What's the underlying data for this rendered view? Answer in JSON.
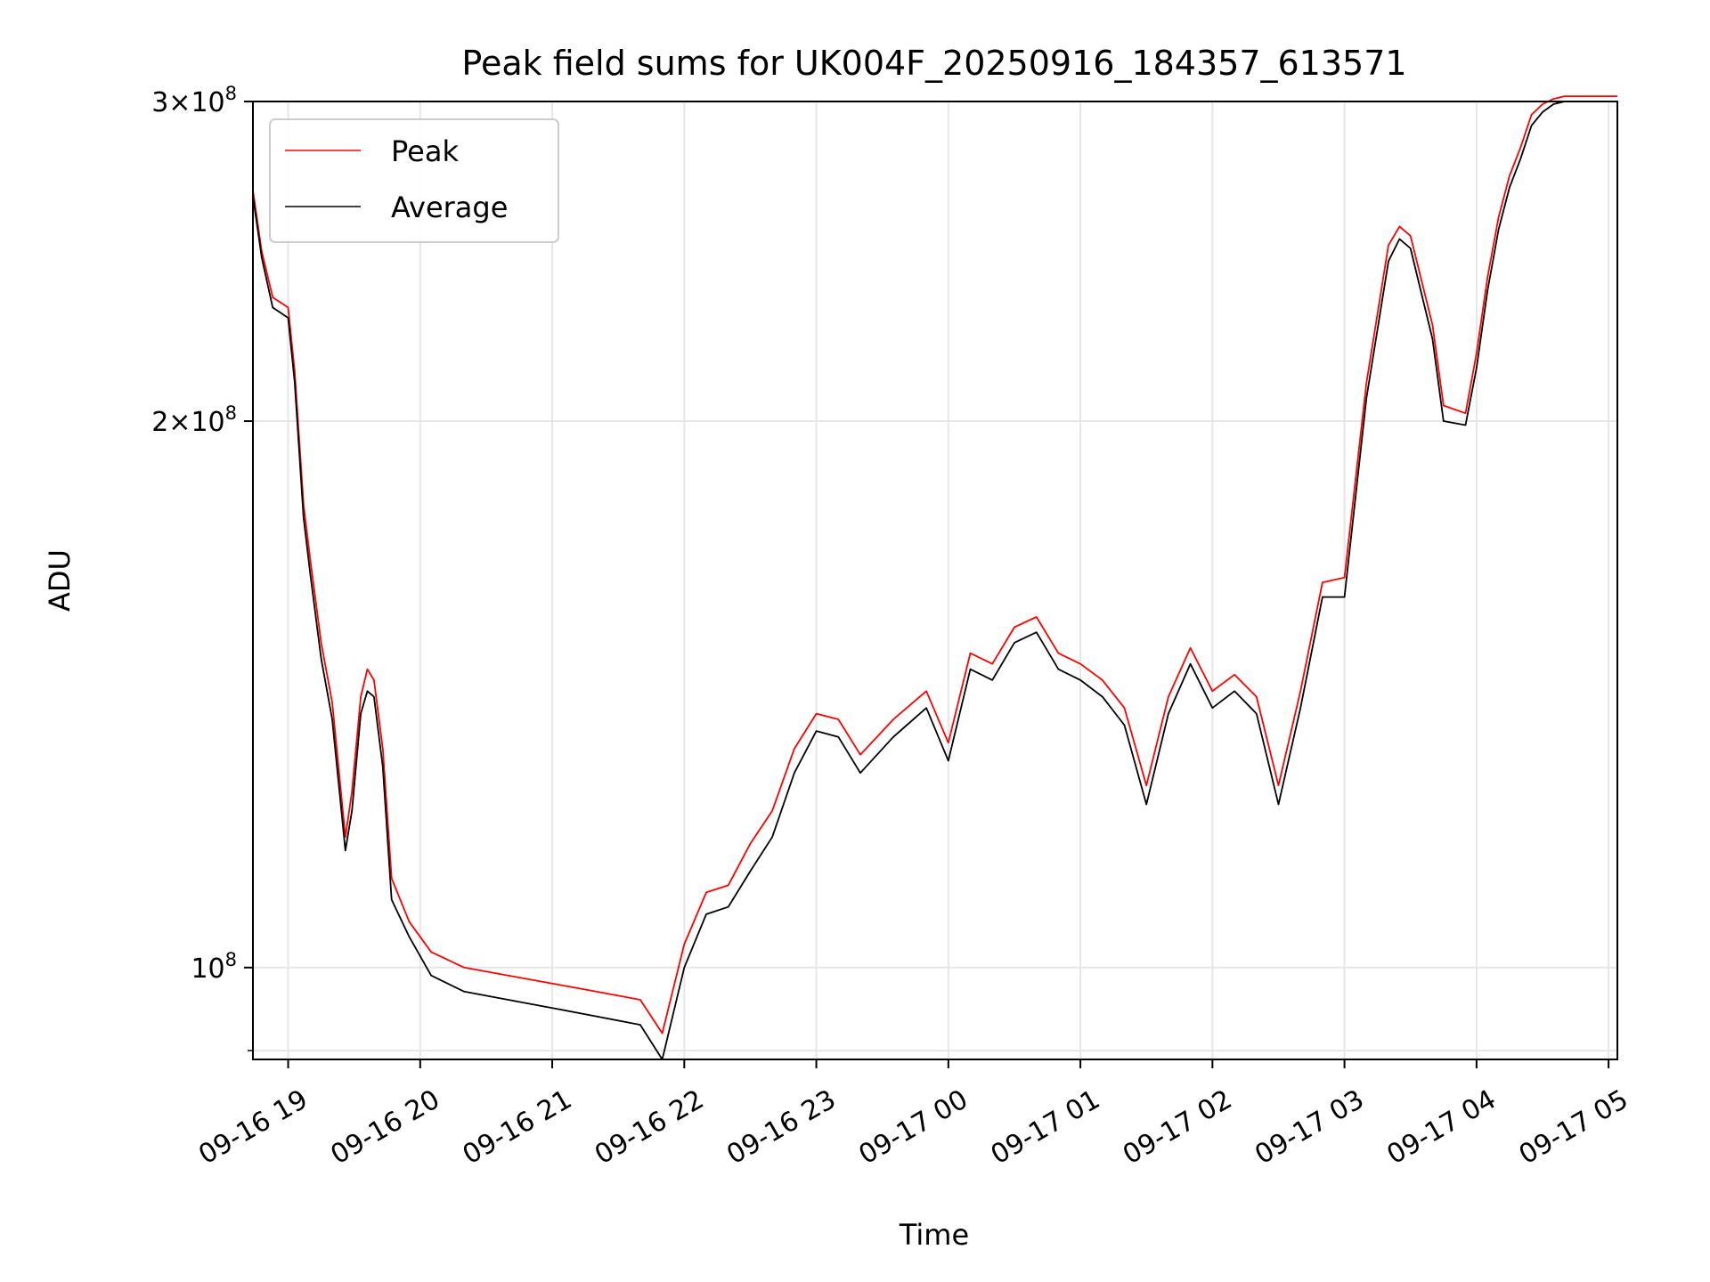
{
  "chart_data": {
    "type": "line",
    "title": "Peak field sums for UK004F_20250916_184357_613571",
    "xlabel": "Time",
    "ylabel": "ADU",
    "yscale": "log",
    "grid": true,
    "legend_position": "top-left",
    "xlim": [
      "2025-09-16 18:44",
      "2025-09-17 05:04"
    ],
    "ylim": [
      89000000,
      300000000
    ],
    "x_tick_labels": [
      "09-16 19",
      "09-16 20",
      "09-16 21",
      "09-16 22",
      "09-16 23",
      "09-17 00",
      "09-17 01",
      "09-17 02",
      "09-17 03",
      "09-17 04",
      "09-17 05"
    ],
    "y_tick_labels": [
      {
        "value": 100000000,
        "mantissa": "",
        "exponent": "8"
      },
      {
        "value": 200000000,
        "mantissa": "2",
        "exponent": "8"
      },
      {
        "value": 300000000,
        "mantissa": "3",
        "exponent": "8"
      }
    ],
    "x": [
      "2025-09-16 18:44",
      "2025-09-16 18:48",
      "2025-09-16 18:53",
      "2025-09-16 19:00",
      "2025-09-16 19:03",
      "2025-09-16 19:07",
      "2025-09-16 19:10",
      "2025-09-16 19:15",
      "2025-09-16 19:20",
      "2025-09-16 19:26",
      "2025-09-16 19:29",
      "2025-09-16 19:33",
      "2025-09-16 19:36",
      "2025-09-16 19:39",
      "2025-09-16 19:43",
      "2025-09-16 19:47",
      "2025-09-16 19:55",
      "2025-09-16 20:05",
      "2025-09-16 20:20",
      "2025-09-16 20:40",
      "2025-09-16 21:00",
      "2025-09-16 21:20",
      "2025-09-16 21:40",
      "2025-09-16 21:50",
      "2025-09-16 22:00",
      "2025-09-16 22:10",
      "2025-09-16 22:20",
      "2025-09-16 22:30",
      "2025-09-16 22:40",
      "2025-09-16 22:50",
      "2025-09-16 23:00",
      "2025-09-16 23:10",
      "2025-09-16 23:20",
      "2025-09-16 23:35",
      "2025-09-16 23:50",
      "2025-09-17 00:00",
      "2025-09-17 00:10",
      "2025-09-17 00:20",
      "2025-09-17 00:30",
      "2025-09-17 00:40",
      "2025-09-17 00:50",
      "2025-09-17 01:00",
      "2025-09-17 01:10",
      "2025-09-17 01:20",
      "2025-09-17 01:30",
      "2025-09-17 01:40",
      "2025-09-17 01:50",
      "2025-09-17 02:00",
      "2025-09-17 02:10",
      "2025-09-17 02:20",
      "2025-09-17 02:30",
      "2025-09-17 02:40",
      "2025-09-17 02:50",
      "2025-09-17 03:00",
      "2025-09-17 03:10",
      "2025-09-17 03:20",
      "2025-09-17 03:25",
      "2025-09-17 03:30",
      "2025-09-17 03:40",
      "2025-09-17 03:45",
      "2025-09-17 03:55",
      "2025-09-17 04:00",
      "2025-09-17 04:05",
      "2025-09-17 04:10",
      "2025-09-17 04:15",
      "2025-09-17 04:20",
      "2025-09-17 04:25",
      "2025-09-17 04:30",
      "2025-09-17 04:35",
      "2025-09-17 04:40",
      "2025-09-17 04:45",
      "2025-09-17 04:50",
      "2025-09-17 04:55",
      "2025-09-17 05:00",
      "2025-09-17 05:04"
    ],
    "series": [
      {
        "name": "Peak",
        "color": "#ff0000",
        "values": [
          268000000,
          248000000,
          234000000,
          231000000,
          213000000,
          180000000,
          168000000,
          151000000,
          140000000,
          118000000,
          125000000,
          141000000,
          146000000,
          144000000,
          132000000,
          112000000,
          106000000,
          102000000,
          100000000,
          99000000,
          98000000,
          97000000,
          96000000,
          92000000,
          103000000,
          110000000,
          111000000,
          117000000,
          122000000,
          132000000,
          138000000,
          137000000,
          131000000,
          137000000,
          142000000,
          133000000,
          149000000,
          147000000,
          154000000,
          156000000,
          149000000,
          147000000,
          144000000,
          139000000,
          126000000,
          141000000,
          150000000,
          142000000,
          145000000,
          141000000,
          126000000,
          142000000,
          163000000,
          164000000,
          210000000,
          250000000,
          256000000,
          253000000,
          226000000,
          204000000,
          202000000,
          218000000,
          240000000,
          259000000,
          273000000,
          283000000,
          295000000,
          299000000,
          301000000,
          302000000,
          302000000,
          302000000,
          302000000,
          302000000,
          302000000
        ]
      },
      {
        "name": "Average",
        "color": "#000000",
        "values": [
          266000000,
          246000000,
          231000000,
          228000000,
          210000000,
          177000000,
          165000000,
          148000000,
          137000000,
          116000000,
          122000000,
          138000000,
          142000000,
          141000000,
          129000000,
          109000000,
          104000000,
          99000000,
          97000000,
          96000000,
          95000000,
          94000000,
          93000000,
          89000000,
          100000000,
          107000000,
          108000000,
          113000000,
          118000000,
          128000000,
          135000000,
          134000000,
          128000000,
          134000000,
          139000000,
          130000000,
          146000000,
          144000000,
          151000000,
          153000000,
          146000000,
          144000000,
          141000000,
          136000000,
          123000000,
          138000000,
          147000000,
          139000000,
          142000000,
          138000000,
          123000000,
          139000000,
          160000000,
          160000000,
          206000000,
          245000000,
          252000000,
          249000000,
          222000000,
          200000000,
          199000000,
          214000000,
          236000000,
          255000000,
          269000000,
          279000000,
          291000000,
          296000000,
          299000000,
          300000000,
          300000000,
          300000000,
          300000000,
          300000000,
          300000000
        ]
      }
    ]
  }
}
